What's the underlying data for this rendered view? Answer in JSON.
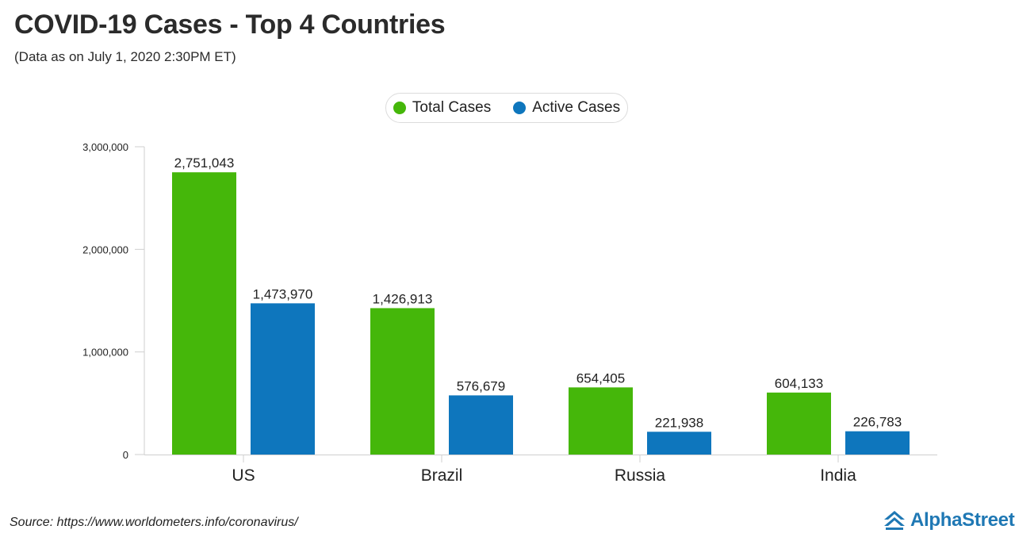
{
  "header": {
    "title": "COVID-19 Cases - Top 4 Countries",
    "subtitle": "(Data as on July 1, 2020  2:30PM ET)"
  },
  "footer": {
    "source": "Source: https://www.worldometers.info/coronavirus/",
    "brand_name": "AlphaStreet"
  },
  "colors": {
    "total": "#45b70a",
    "active": "#0e76bd",
    "brand": "#1f78b4"
  },
  "chart_data": {
    "type": "bar",
    "title": "COVID-19 Cases - Top 4 Countries",
    "subtitle": "(Data as on July 1, 2020  2:30PM ET)",
    "categories": [
      "US",
      "Brazil",
      "Russia",
      "India"
    ],
    "series": [
      {
        "name": "Total Cases",
        "color": "#45b70a",
        "values": [
          2751043,
          1426913,
          654405,
          604133
        ],
        "labels": [
          "2,751,043",
          "1,426,913",
          "654,405",
          "604,133"
        ]
      },
      {
        "name": "Active Cases",
        "color": "#0e76bd",
        "values": [
          1473970,
          576679,
          221938,
          226783
        ],
        "labels": [
          "1,473,970",
          "576,679",
          "221,938",
          "226,783"
        ]
      }
    ],
    "ylim": [
      0,
      3000000
    ],
    "yticks": [
      0,
      1000000,
      2000000,
      3000000
    ],
    "ytick_labels": [
      "0",
      "1,000,000",
      "2,000,000",
      "3,000,000"
    ],
    "xlabel": "",
    "ylabel": "",
    "grid": false,
    "legend": "top-center"
  }
}
